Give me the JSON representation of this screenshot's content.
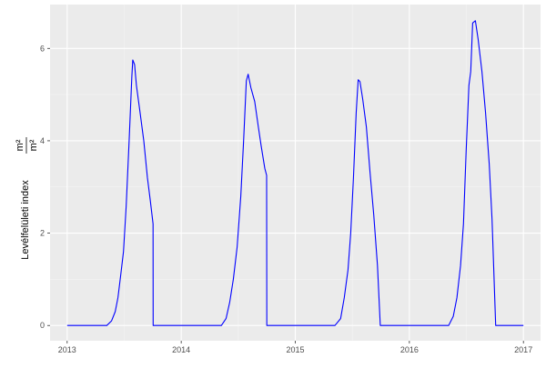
{
  "chart_data": {
    "type": "line",
    "xlabel": "",
    "ylabel": "Levélfelületi index",
    "ylabel_unit_num": "m²",
    "ylabel_unit_den": "m²",
    "xlim": [
      2012.85,
      2017.15
    ],
    "ylim": [
      -0.33,
      6.95
    ],
    "x_ticks": [
      2013,
      2014,
      2015,
      2016,
      2017
    ],
    "x_tick_labels": [
      "2013",
      "2014",
      "2015",
      "2016",
      "2017"
    ],
    "y_ticks": [
      0,
      2,
      4,
      6
    ],
    "y_tick_labels": [
      "0",
      "2",
      "4",
      "6"
    ],
    "grid": true,
    "line_color": "#0000ff",
    "panel_color": "#ebebeb",
    "series": [
      {
        "x": [
          2013.0,
          2013.348,
          2013.389,
          2013.421,
          2013.445,
          2013.47,
          2013.494,
          2013.518,
          2013.543,
          2013.567,
          2013.575,
          2013.591,
          2013.607,
          2013.64,
          2013.672,
          2013.704,
          2013.729,
          2013.753,
          2013.754,
          2014.352,
          2014.393,
          2014.425,
          2014.457,
          2014.49,
          2014.522,
          2014.547,
          2014.571,
          2014.587,
          2014.611,
          2014.644,
          2014.676,
          2014.7,
          2014.733,
          2014.749,
          2014.75,
          2015.348,
          2015.397,
          2015.429,
          2015.462,
          2015.486,
          2015.51,
          2015.534,
          2015.551,
          2015.567,
          2015.591,
          2015.623,
          2015.656,
          2015.688,
          2015.72,
          2015.745,
          2016.344,
          2016.385,
          2016.417,
          2016.449,
          2016.474,
          2016.498,
          2016.522,
          2016.538,
          2016.555,
          2016.579,
          2016.603,
          2016.636,
          2016.668,
          2016.7,
          2016.725,
          2016.757,
          2017.0
        ],
        "y": [
          0,
          0,
          0.1,
          0.3,
          0.6,
          1.1,
          1.6,
          2.6,
          4.0,
          5.4,
          5.75,
          5.65,
          5.2,
          4.6,
          4.0,
          3.2,
          2.7,
          2.2,
          0,
          0,
          0.15,
          0.5,
          1.0,
          1.7,
          2.8,
          4.0,
          5.3,
          5.44,
          5.15,
          4.85,
          4.3,
          3.9,
          3.4,
          3.25,
          0,
          0,
          0.15,
          0.6,
          1.2,
          2.0,
          3.2,
          4.6,
          5.32,
          5.28,
          4.9,
          4.3,
          3.3,
          2.4,
          1.3,
          0,
          0,
          0.2,
          0.6,
          1.3,
          2.2,
          3.8,
          5.2,
          5.5,
          6.55,
          6.6,
          6.2,
          5.5,
          4.6,
          3.5,
          2.3,
          0,
          0
        ]
      }
    ]
  }
}
